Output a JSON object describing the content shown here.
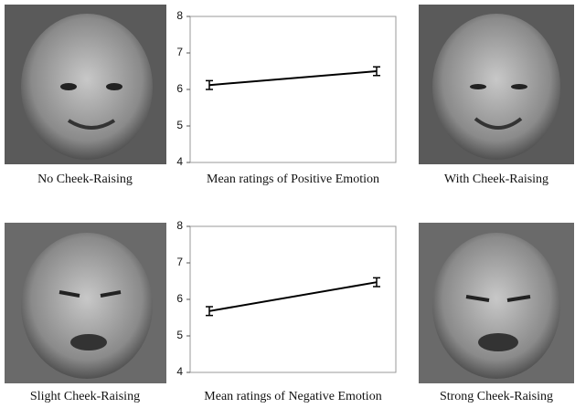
{
  "chart_data": [
    {
      "type": "line",
      "title": "Mean ratings of Positive Emotion",
      "categories": [
        null,
        null
      ],
      "values": [
        6.12,
        6.5
      ],
      "errors": [
        0.12,
        0.12
      ],
      "ylim": [
        4,
        8
      ],
      "yticks": [
        4,
        5,
        6,
        7,
        8
      ],
      "color": "#000000",
      "annotations": [
        "No Cheek-Raising",
        "With Cheek-Raising"
      ]
    },
    {
      "type": "line",
      "title": "Mean ratings of Negative Emotion",
      "categories": [
        null,
        null
      ],
      "values": [
        5.68,
        6.47
      ],
      "errors": [
        0.12,
        0.12
      ],
      "ylim": [
        4,
        8
      ],
      "yticks": [
        4,
        5,
        6,
        7,
        8
      ],
      "color": "#000000",
      "annotations": [
        "Slight Cheek-Raising",
        "Strong Cheek-Raising"
      ]
    }
  ]
}
